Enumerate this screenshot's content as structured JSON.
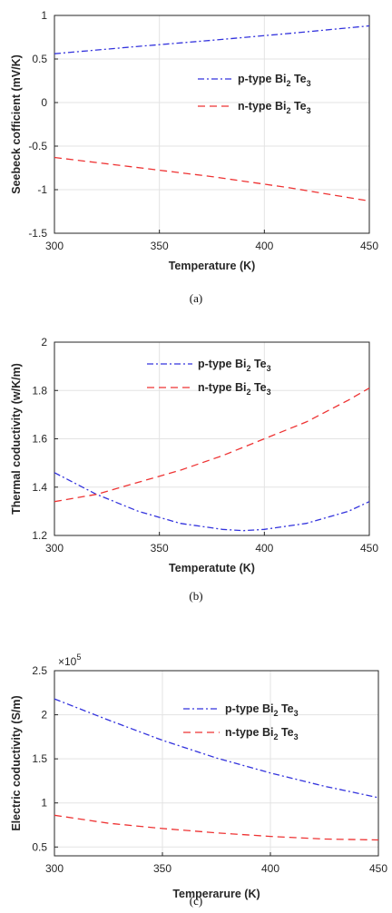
{
  "chart_data": [
    {
      "type": "line",
      "caption": "(a)",
      "xlabel": "Temperature (K)",
      "ylabel": "Seebeck cofficient (mV/K)",
      "xlim": [
        300,
        450
      ],
      "ylim": [
        -1.5,
        1
      ],
      "xticks": [
        300,
        350,
        400,
        450
      ],
      "yticks": [
        -1.5,
        -1,
        -0.5,
        0,
        0.5,
        1
      ],
      "xtick_labels": [
        "300",
        "350",
        "400",
        "450"
      ],
      "ytick_labels": [
        "-1.5",
        "-1",
        "-0.5",
        "0",
        "0.5",
        "1"
      ],
      "grid": true,
      "legend_position": "upper-right-middle",
      "series": [
        {
          "name_main": "p-type Bi",
          "name_sub1": "2",
          "name_mid": " Te",
          "name_sub2": "3",
          "color": "#3333dd",
          "style": "dashdot",
          "x": [
            300,
            337.5,
            375,
            412.5,
            450
          ],
          "y": [
            0.56,
            0.64,
            0.715,
            0.795,
            0.88
          ]
        },
        {
          "name_main": "n-type Bi",
          "name_sub1": "2",
          "name_mid": " Te",
          "name_sub2": "3",
          "color": "#ee3333",
          "style": "dashed",
          "x": [
            300,
            337.5,
            375,
            412.5,
            450
          ],
          "y": [
            -0.63,
            -0.74,
            -0.85,
            -0.98,
            -1.13
          ]
        }
      ]
    },
    {
      "type": "line",
      "caption": "(b)",
      "xlabel": "Temperatute (K)",
      "ylabel": "Thermal coductivity (w/K/m)",
      "xlim": [
        300,
        450
      ],
      "ylim": [
        1.2,
        2
      ],
      "xticks": [
        300,
        350,
        400,
        450
      ],
      "yticks": [
        1.2,
        1.4,
        1.6,
        1.8,
        2
      ],
      "xtick_labels": [
        "300",
        "350",
        "400",
        "450"
      ],
      "ytick_labels": [
        "1.2",
        "1.4",
        "1.6",
        "1.8",
        "2"
      ],
      "grid": true,
      "legend_position": "top-middle",
      "series": [
        {
          "name_main": "p-type Bi",
          "name_sub1": "2",
          "name_mid": " Te",
          "name_sub2": "3",
          "color": "#3333dd",
          "style": "dashdot",
          "x": [
            300,
            320,
            340,
            360,
            380,
            390,
            400,
            420,
            440,
            450
          ],
          "y": [
            1.46,
            1.37,
            1.3,
            1.25,
            1.225,
            1.22,
            1.225,
            1.25,
            1.3,
            1.34
          ]
        },
        {
          "name_main": "n-type Bi",
          "name_sub1": "2",
          "name_mid": " Te",
          "name_sub2": "3",
          "color": "#ee3333",
          "style": "dashed",
          "x": [
            300,
            320,
            340,
            360,
            380,
            400,
            420,
            440,
            450
          ],
          "y": [
            1.34,
            1.37,
            1.42,
            1.47,
            1.53,
            1.6,
            1.67,
            1.76,
            1.81
          ]
        }
      ]
    },
    {
      "type": "line",
      "caption": "(c)",
      "xlabel": "Temperarure (K)",
      "ylabel": "Electric coductivity (S/m)",
      "multiplier_base": "×10",
      "multiplier_exp": "5",
      "xlim": [
        300,
        450
      ],
      "ylim": [
        0.4,
        2.5
      ],
      "xticks": [
        300,
        350,
        400,
        450
      ],
      "yticks": [
        0.5,
        1,
        1.5,
        2,
        2.5
      ],
      "xtick_labels": [
        "300",
        "350",
        "400",
        "450"
      ],
      "ytick_labels": [
        "0.5",
        "1",
        "1.5",
        "2",
        "2.5"
      ],
      "grid": true,
      "legend_position": "top-right",
      "series": [
        {
          "name_main": "p-type Bi",
          "name_sub1": "2",
          "name_mid": " Te",
          "name_sub2": "3",
          "color": "#3333dd",
          "style": "dashdot",
          "x": [
            300,
            325,
            350,
            375,
            400,
            425,
            450
          ],
          "y": [
            2.18,
            1.94,
            1.71,
            1.51,
            1.34,
            1.19,
            1.06
          ]
        },
        {
          "name_main": "n-type Bi",
          "name_sub1": "2",
          "name_mid": " Te",
          "name_sub2": "3",
          "color": "#ee3333",
          "style": "dashed",
          "x": [
            300,
            325,
            350,
            375,
            400,
            425,
            450
          ],
          "y": [
            0.86,
            0.77,
            0.71,
            0.66,
            0.62,
            0.59,
            0.58
          ]
        }
      ]
    }
  ]
}
